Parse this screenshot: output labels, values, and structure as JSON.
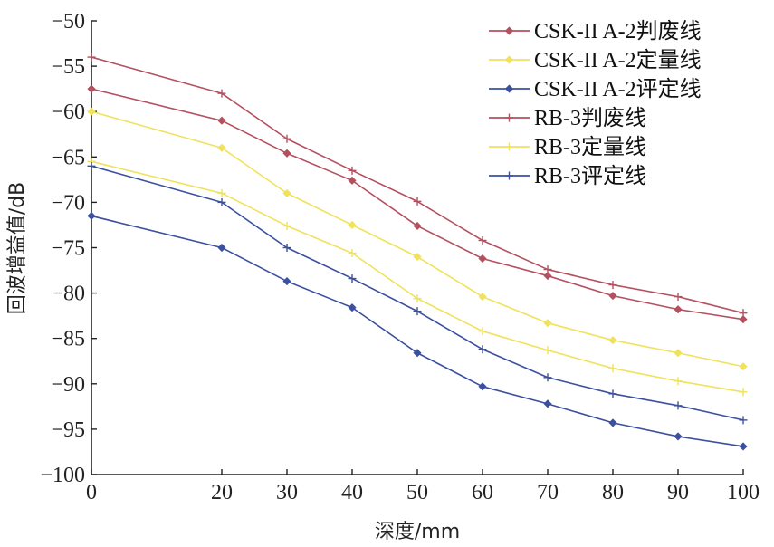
{
  "chart_data": {
    "type": "line",
    "title": "",
    "xlabel": "深度/mm",
    "ylabel": "回波增益值/dB",
    "xlim": [
      0,
      100
    ],
    "ylim": [
      -100,
      -50
    ],
    "x_ticks": [
      0,
      20,
      30,
      40,
      50,
      60,
      70,
      80,
      90,
      100
    ],
    "x_tick_labels": [
      "0",
      "20",
      "30",
      "40",
      "50",
      "60",
      "70",
      "80",
      "90",
      "100"
    ],
    "y_ticks": [
      -50,
      -55,
      -60,
      -65,
      -70,
      -75,
      -80,
      -85,
      -90,
      -95,
      -100
    ],
    "y_tick_labels": [
      "−50",
      "−55",
      "−60",
      "−65",
      "−70",
      "−75",
      "−80",
      "−85",
      "−90",
      "−95",
      "−100"
    ],
    "grid": false,
    "legend_position": "top-right",
    "x": [
      0,
      20,
      30,
      40,
      50,
      60,
      70,
      80,
      90,
      100
    ],
    "series": [
      {
        "name": "CSK-II A-2判废线",
        "color": "#b4505f",
        "marker": "diamond",
        "values": [
          -57.5,
          -61,
          -64.6,
          -67.6,
          -72.6,
          -76.2,
          -78.1,
          -80.3,
          -81.8,
          -82.9
        ]
      },
      {
        "name": "CSK-II A-2定量线",
        "color": "#f0e25a",
        "marker": "diamond",
        "values": [
          -60,
          -64,
          -69,
          -72.5,
          -76,
          -80.4,
          -83.3,
          -85.2,
          -86.6,
          -88.1
        ]
      },
      {
        "name": "CSK-II A-2评定线",
        "color": "#3c50a0",
        "marker": "diamond",
        "values": [
          -71.5,
          -75,
          -78.7,
          -81.6,
          -86.6,
          -90.3,
          -92.2,
          -94.3,
          -95.8,
          -96.9
        ]
      },
      {
        "name": "RB-3判废线",
        "color": "#b4505f",
        "marker": "plus",
        "values": [
          -54,
          -58,
          -63,
          -66.5,
          -69.9,
          -74.2,
          -77.4,
          -79.1,
          -80.4,
          -82.2
        ]
      },
      {
        "name": "RB-3定量线",
        "color": "#f0e25a",
        "marker": "plus",
        "values": [
          -65.5,
          -69,
          -72.6,
          -75.6,
          -80.6,
          -84.2,
          -86.3,
          -88.3,
          -89.7,
          -90.9
        ]
      },
      {
        "name": "RB-3评定线",
        "color": "#3c50a0",
        "marker": "plus",
        "values": [
          -66,
          -70,
          -75,
          -78.4,
          -82,
          -86.2,
          -89.3,
          -91.1,
          -92.4,
          -94
        ]
      }
    ]
  }
}
